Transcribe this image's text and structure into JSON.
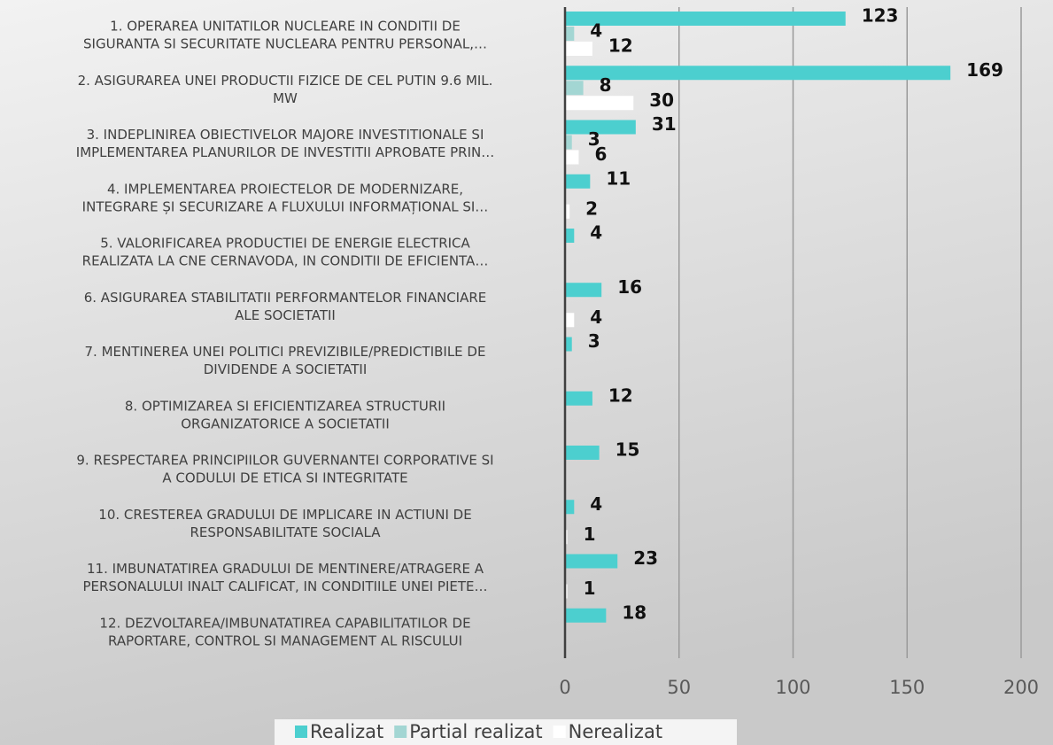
{
  "chart_data": {
    "type": "bar",
    "orientation": "horizontal",
    "categories": [
      [
        "1. OPERAREA UNITATILOR NUCLEARE IN CONDITII DE",
        "SIGURANTA SI SECURITATE NUCLEARA PENTRU PERSONAL,…"
      ],
      [
        "2. ASIGURAREA UNEI PRODUCTII FIZICE DE CEL PUTIN 9.6 MIL.",
        "MW"
      ],
      [
        "3. INDEPLINIREA OBIECTIVELOR MAJORE INVESTITIONALE SI",
        "IMPLEMENTAREA PLANURILOR DE INVESTITII APROBATE PRIN…"
      ],
      [
        "4. IMPLEMENTAREA PROIECTELOR DE MODERNIZARE,",
        "INTEGRARE ȘI SECURIZARE A FLUXULUI INFORMAȚIONAL SI…"
      ],
      [
        "5. VALORIFICAREA PRODUCTIEI DE ENERGIE ELECTRICA",
        "REALIZATA LA CNE CERNAVODA, IN CONDITII DE EFICIENTA…"
      ],
      [
        "6. ASIGURAREA STABILITATII PERFORMANTELOR FINANCIARE",
        "ALE SOCIETATII"
      ],
      [
        "7. MENTINEREA UNEI POLITICI PREVIZIBILE/PREDICTIBILE DE",
        "DIVIDENDE A SOCIETATII"
      ],
      [
        "8. OPTIMIZAREA SI EFICIENTIZAREA STRUCTURII",
        "ORGANIZATORICE A SOCIETATII"
      ],
      [
        "9. RESPECTAREA PRINCIPIILOR GUVERNANTEI CORPORATIVE SI",
        "A CODULUI DE ETICA SI INTEGRITATE"
      ],
      [
        "10. CRESTEREA GRADULUI DE IMPLICARE IN ACTIUNI DE",
        "RESPONSABILITATE SOCIALA"
      ],
      [
        "11. IMBUNATATIREA GRADULUI DE MENTINERE/ATRAGERE A",
        "PERSONALULUI INALT CALIFICAT, IN CONDITIILE UNEI PIETE…"
      ],
      [
        "12. DEZVOLTAREA/IMBUNATATIREA CAPABILITATILOR DE",
        "RAPORTARE, CONTROL SI MANAGEMENT AL RISCULUI"
      ]
    ],
    "series": [
      {
        "name": "Realizat",
        "color": "#4ccfcf",
        "values": [
          123,
          169,
          31,
          11,
          4,
          16,
          3,
          12,
          15,
          4,
          23,
          18
        ]
      },
      {
        "name": "Partial realizat",
        "color": "#a3d6d3",
        "values": [
          4,
          8,
          3,
          null,
          null,
          null,
          null,
          null,
          null,
          null,
          null,
          null
        ]
      },
      {
        "name": "Nerealizat",
        "color": "#ffffff",
        "values": [
          12,
          30,
          6,
          2,
          null,
          4,
          null,
          null,
          null,
          1,
          1,
          null
        ]
      }
    ],
    "xlim": [
      0,
      200
    ],
    "xticks": [
      0,
      50,
      100,
      150,
      200
    ],
    "grid": true,
    "legend": "bottom"
  }
}
